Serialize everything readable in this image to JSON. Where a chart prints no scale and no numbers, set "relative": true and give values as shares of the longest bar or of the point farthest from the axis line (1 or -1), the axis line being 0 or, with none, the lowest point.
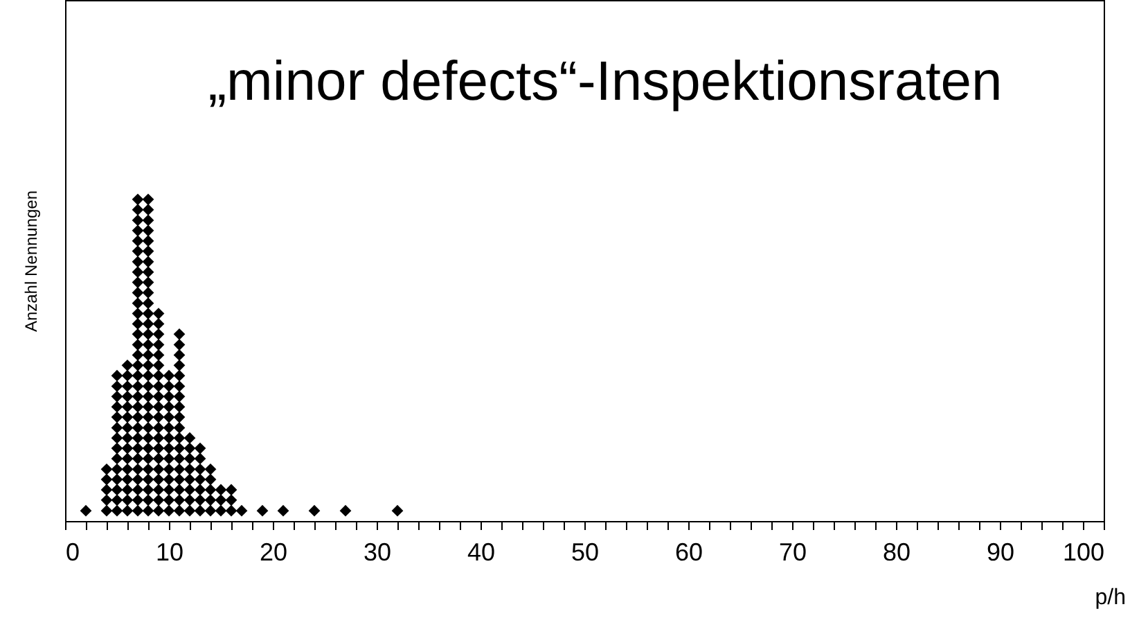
{
  "chart_data": {
    "type": "scatter",
    "title": "„minor defects“-Inspektionsraten",
    "xlabel": "p/h",
    "ylabel": "Anzahl Nennungen",
    "series": [
      {
        "color": "#000000",
        "x": [
          2,
          4,
          4,
          4,
          4,
          4,
          5,
          5,
          5,
          5,
          5,
          5,
          5,
          5,
          5,
          5,
          5,
          5,
          5,
          5,
          6,
          6,
          6,
          6,
          6,
          6,
          6,
          6,
          6,
          6,
          6,
          6,
          6,
          6,
          6,
          7,
          7,
          7,
          7,
          7,
          7,
          7,
          7,
          7,
          7,
          7,
          7,
          7,
          7,
          7,
          7,
          7,
          7,
          7,
          7,
          7,
          7,
          7,
          7,
          7,
          7,
          7,
          7,
          7,
          7,
          7,
          8,
          8,
          8,
          8,
          8,
          8,
          8,
          8,
          8,
          8,
          8,
          8,
          8,
          8,
          8,
          8,
          8,
          8,
          8,
          8,
          8,
          8,
          8,
          8,
          8,
          8,
          8,
          8,
          8,
          8,
          8,
          9,
          9,
          9,
          9,
          9,
          9,
          9,
          9,
          9,
          9,
          9,
          9,
          9,
          9,
          9,
          9,
          9,
          9,
          9,
          9,
          10,
          10,
          10,
          10,
          10,
          10,
          10,
          10,
          10,
          10,
          10,
          10,
          10,
          10,
          11,
          11,
          11,
          11,
          11,
          11,
          11,
          11,
          11,
          11,
          11,
          11,
          11,
          11,
          11,
          11,
          11,
          11,
          12,
          12,
          12,
          12,
          12,
          12,
          12,
          12,
          13,
          13,
          13,
          13,
          13,
          13,
          13,
          14,
          14,
          14,
          14,
          14,
          15,
          15,
          15,
          16,
          16,
          16,
          17,
          19,
          21,
          24,
          27,
          32
        ],
        "values": [
          0.032,
          0.032,
          0.065,
          0.097,
          0.129,
          0.161,
          0.032,
          0.065,
          0.097,
          0.129,
          0.161,
          0.194,
          0.226,
          0.258,
          0.29,
          0.323,
          0.355,
          0.387,
          0.419,
          0.452,
          0.032,
          0.065,
          0.097,
          0.129,
          0.161,
          0.194,
          0.226,
          0.258,
          0.29,
          0.323,
          0.355,
          0.387,
          0.419,
          0.452,
          0.484,
          0.032,
          0.065,
          0.097,
          0.129,
          0.161,
          0.194,
          0.226,
          0.258,
          0.29,
          0.323,
          0.355,
          0.387,
          0.419,
          0.452,
          0.484,
          0.516,
          0.548,
          0.581,
          0.613,
          0.645,
          0.677,
          0.71,
          0.742,
          0.774,
          0.806,
          0.839,
          0.871,
          0.903,
          0.935,
          0.968,
          1,
          0.032,
          0.065,
          0.097,
          0.129,
          0.161,
          0.194,
          0.226,
          0.258,
          0.29,
          0.323,
          0.355,
          0.387,
          0.419,
          0.452,
          0.484,
          0.516,
          0.548,
          0.581,
          0.613,
          0.645,
          0.677,
          0.71,
          0.742,
          0.774,
          0.806,
          0.839,
          0.871,
          0.903,
          0.935,
          0.968,
          1,
          0.032,
          0.065,
          0.097,
          0.129,
          0.161,
          0.194,
          0.226,
          0.258,
          0.29,
          0.323,
          0.355,
          0.387,
          0.419,
          0.452,
          0.484,
          0.516,
          0.548,
          0.581,
          0.613,
          0.645,
          0.032,
          0.065,
          0.097,
          0.129,
          0.161,
          0.194,
          0.226,
          0.258,
          0.29,
          0.323,
          0.355,
          0.387,
          0.419,
          0.452,
          0.032,
          0.065,
          0.097,
          0.129,
          0.161,
          0.194,
          0.226,
          0.258,
          0.29,
          0.323,
          0.355,
          0.387,
          0.419,
          0.452,
          0.484,
          0.516,
          0.548,
          0.581,
          0.032,
          0.065,
          0.097,
          0.129,
          0.161,
          0.194,
          0.226,
          0.258,
          0.032,
          0.065,
          0.097,
          0.129,
          0.161,
          0.194,
          0.226,
          0.032,
          0.065,
          0.097,
          0.129,
          0.161,
          0.032,
          0.065,
          0.097,
          0.032,
          0.065,
          0.097,
          0.032,
          0.032,
          0.032,
          0.032,
          0.032,
          0.032
        ]
      }
    ],
    "relative": true,
    "marker": "diamond",
    "xlim": [
      0,
      100
    ],
    "xticks": [
      0,
      {
        "value": 2,
        "label": null
      },
      {
        "value": 4,
        "label": null
      },
      {
        "value": 6,
        "label": null
      },
      {
        "value": 8,
        "label": null
      },
      10,
      {
        "value": 12,
        "label": null
      },
      {
        "value": 14,
        "label": null
      },
      {
        "value": 16,
        "label": null
      },
      {
        "value": 18,
        "label": null
      },
      20,
      {
        "value": 22,
        "label": null
      },
      {
        "value": 24,
        "label": null
      },
      {
        "value": 26,
        "label": null
      },
      {
        "value": 28,
        "label": null
      },
      30,
      {
        "value": 32,
        "label": null
      },
      {
        "value": 34,
        "label": null
      },
      {
        "value": 36,
        "label": null
      },
      {
        "value": 38,
        "label": null
      },
      40,
      {
        "value": 42,
        "label": null
      },
      {
        "value": 44,
        "label": null
      },
      {
        "value": 46,
        "label": null
      },
      {
        "value": 48,
        "label": null
      },
      50,
      {
        "value": 52,
        "label": null
      },
      {
        "value": 54,
        "label": null
      },
      {
        "value": 56,
        "label": null
      },
      {
        "value": 58,
        "label": null
      },
      60,
      {
        "value": 62,
        "label": null
      },
      {
        "value": 64,
        "label": null
      },
      {
        "value": 66,
        "label": null
      },
      {
        "value": 68,
        "label": null
      },
      70,
      {
        "value": 72,
        "label": null
      },
      {
        "value": 74,
        "label": null
      },
      {
        "value": 76,
        "label": null
      },
      {
        "value": 78,
        "label": null
      },
      80,
      {
        "value": 82,
        "label": null
      },
      {
        "value": 84,
        "label": null
      },
      {
        "value": 86,
        "label": null
      },
      {
        "value": 88,
        "label": null
      },
      90,
      {
        "value": 92,
        "label": null
      },
      {
        "value": 94,
        "label": null
      },
      {
        "value": 96,
        "label": null
      },
      {
        "value": 98,
        "label": null
      },
      100
    ],
    "tick_labels": "x",
    "grid": false
  }
}
